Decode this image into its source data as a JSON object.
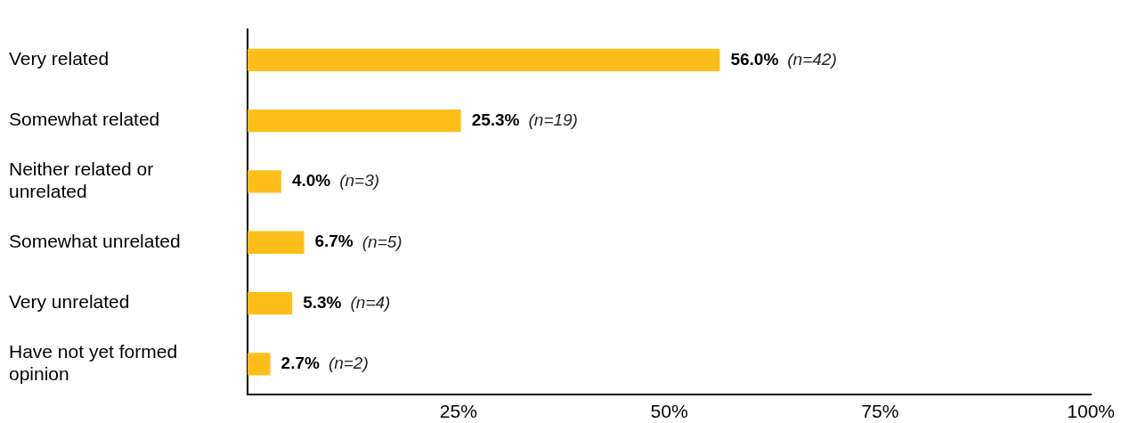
{
  "chart_data": {
    "type": "bar",
    "orientation": "horizontal",
    "categories": [
      "Very related",
      "Somewhat related",
      "Neither related or unrelated",
      "Somewhat unrelated",
      "Very unrelated",
      "Have not yet formed opinion"
    ],
    "values": [
      56.0,
      25.3,
      4.0,
      6.7,
      5.3,
      2.7
    ],
    "color": "#fdbe1a",
    "xlim": [
      0,
      100
    ],
    "xticks": [
      {
        "value": 25,
        "label": "25%"
      },
      {
        "value": 50,
        "label": "50%"
      },
      {
        "value": 75,
        "label": "75%"
      },
      {
        "value": 100,
        "label": "100%"
      }
    ],
    "value_labels": [
      "56.0% (n=42)",
      "25.3% (n=19)",
      "4.0% (n=3)",
      "6.7% (n=5)",
      "5.3% (n=4)",
      "2.7% (n=2)"
    ]
  }
}
